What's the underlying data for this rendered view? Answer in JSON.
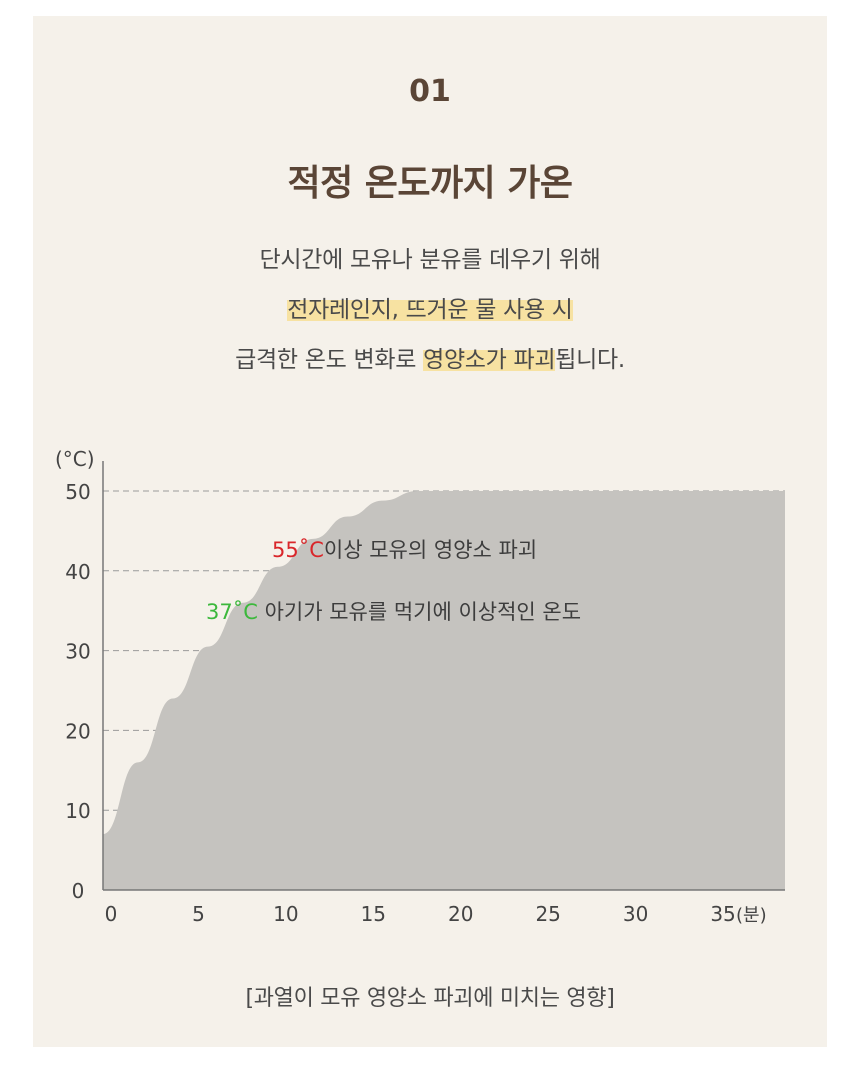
{
  "header": {
    "step": "01",
    "title": "적정 온도까지 가온"
  },
  "description": {
    "line1": "단시간에 모유나 분유를 데우기 위해",
    "line2_highlight": "전자레인지, 뜨거운 물 사용 시",
    "line3_before": "급격한 온도 변화로 ",
    "line3_highlight": "영양소가 파괴",
    "line3_after": "됩니다."
  },
  "colors": {
    "background": "#f5f1ea",
    "title": "#5a4536",
    "highlight": "#f7e2a2",
    "fill": "#c5c3bf",
    "grid": "#9a9a9a",
    "danger": "#d9262a",
    "safe": "#3cb83c"
  },
  "chart_data": {
    "type": "area",
    "ylabel": "(°C)",
    "xlabel": "(분)",
    "xlim": [
      0,
      39
    ],
    "ylim": [
      0,
      50
    ],
    "x_ticks": [
      0,
      5,
      10,
      15,
      20,
      25,
      30,
      35
    ],
    "y_ticks": [
      0,
      10,
      20,
      30,
      40,
      50
    ],
    "grid": "horizontal dashed",
    "series": [
      {
        "x": [
          0,
          2,
          4,
          6,
          8,
          10,
          12,
          14,
          16,
          18,
          20,
          25,
          30,
          35,
          39
        ],
        "y": [
          7,
          16,
          24,
          30.5,
          36,
          40.5,
          44,
          46.8,
          48.8,
          50,
          50,
          50,
          50,
          50,
          50
        ]
      }
    ],
    "annotations": [
      {
        "highlight": "55˚C",
        "text": "이상 모유의 영양소 파괴"
      },
      {
        "highlight": "37˚C",
        "text": " 아기가 모유를 먹기에 이상적인 온도"
      }
    ]
  },
  "caption": "[과열이 모유 영양소 파괴에 미치는 영향]"
}
